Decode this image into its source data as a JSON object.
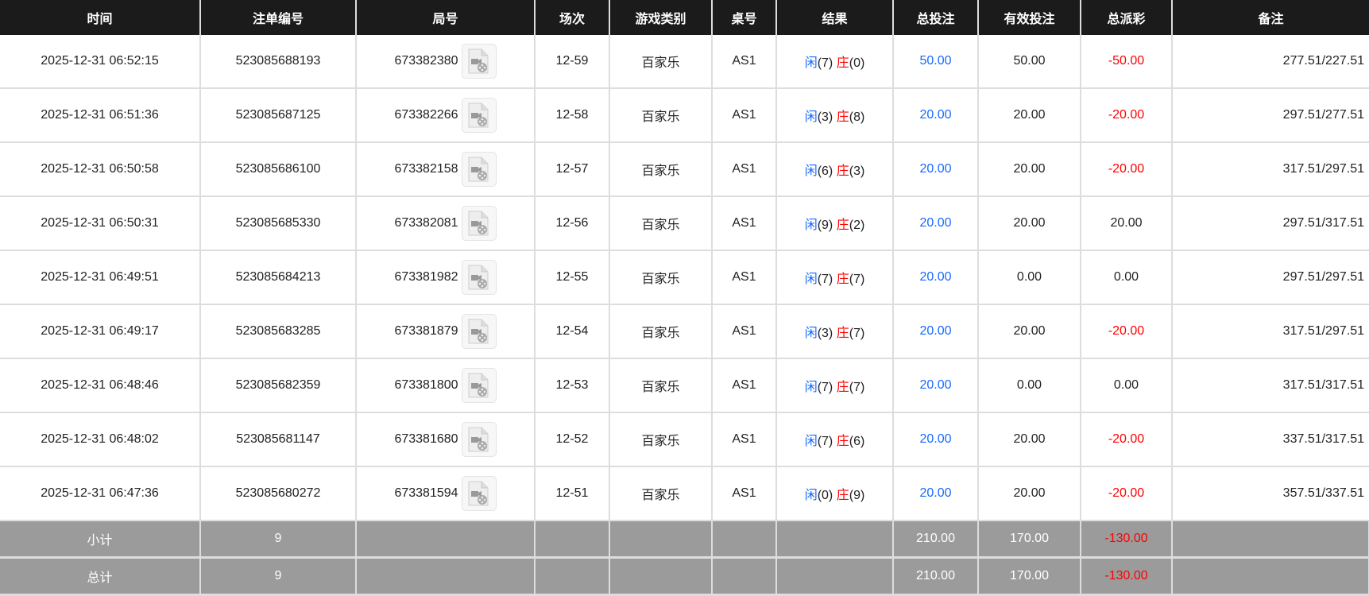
{
  "headers": [
    "时间",
    "注单编号",
    "局号",
    "场次",
    "游戏类别",
    "桌号",
    "结果",
    "总投注",
    "有效投注",
    "总派彩",
    "备注"
  ],
  "colors": {
    "player": "#1569ff",
    "banker": "#ff0000",
    "header_bg": "#1b1b1b",
    "summary_bg": "#9b9b9b"
  },
  "video_icon": "video-file-icon",
  "rows": [
    {
      "time": "2025-12-31 06:52:15",
      "bet_id": "523085688193",
      "round": "673382380",
      "shoe": "12-59",
      "game": "百家乐",
      "table": "AS1",
      "player": "闲",
      "player_pts": "(7)",
      "banker": "庄",
      "banker_pts": "(0)",
      "total_bet": "50.00",
      "valid_bet": "50.00",
      "payout": "-50.00",
      "payout_neg": true,
      "note": "277.51/227.51"
    },
    {
      "time": "2025-12-31 06:51:36",
      "bet_id": "523085687125",
      "round": "673382266",
      "shoe": "12-58",
      "game": "百家乐",
      "table": "AS1",
      "player": "闲",
      "player_pts": "(3)",
      "banker": "庄",
      "banker_pts": "(8)",
      "total_bet": "20.00",
      "valid_bet": "20.00",
      "payout": "-20.00",
      "payout_neg": true,
      "note": "297.51/277.51"
    },
    {
      "time": "2025-12-31 06:50:58",
      "bet_id": "523085686100",
      "round": "673382158",
      "shoe": "12-57",
      "game": "百家乐",
      "table": "AS1",
      "player": "闲",
      "player_pts": "(6)",
      "banker": "庄",
      "banker_pts": "(3)",
      "total_bet": "20.00",
      "valid_bet": "20.00",
      "payout": "-20.00",
      "payout_neg": true,
      "note": "317.51/297.51"
    },
    {
      "time": "2025-12-31 06:50:31",
      "bet_id": "523085685330",
      "round": "673382081",
      "shoe": "12-56",
      "game": "百家乐",
      "table": "AS1",
      "player": "闲",
      "player_pts": "(9)",
      "banker": "庄",
      "banker_pts": "(2)",
      "total_bet": "20.00",
      "valid_bet": "20.00",
      "payout": "20.00",
      "payout_neg": false,
      "note": "297.51/317.51"
    },
    {
      "time": "2025-12-31 06:49:51",
      "bet_id": "523085684213",
      "round": "673381982",
      "shoe": "12-55",
      "game": "百家乐",
      "table": "AS1",
      "player": "闲",
      "player_pts": "(7)",
      "banker": "庄",
      "banker_pts": "(7)",
      "total_bet": "20.00",
      "valid_bet": "0.00",
      "payout": "0.00",
      "payout_neg": false,
      "note": "297.51/297.51"
    },
    {
      "time": "2025-12-31 06:49:17",
      "bet_id": "523085683285",
      "round": "673381879",
      "shoe": "12-54",
      "game": "百家乐",
      "table": "AS1",
      "player": "闲",
      "player_pts": "(3)",
      "banker": "庄",
      "banker_pts": "(7)",
      "total_bet": "20.00",
      "valid_bet": "20.00",
      "payout": "-20.00",
      "payout_neg": true,
      "note": "317.51/297.51"
    },
    {
      "time": "2025-12-31 06:48:46",
      "bet_id": "523085682359",
      "round": "673381800",
      "shoe": "12-53",
      "game": "百家乐",
      "table": "AS1",
      "player": "闲",
      "player_pts": "(7)",
      "banker": "庄",
      "banker_pts": "(7)",
      "total_bet": "20.00",
      "valid_bet": "0.00",
      "payout": "0.00",
      "payout_neg": false,
      "note": "317.51/317.51"
    },
    {
      "time": "2025-12-31 06:48:02",
      "bet_id": "523085681147",
      "round": "673381680",
      "shoe": "12-52",
      "game": "百家乐",
      "table": "AS1",
      "player": "闲",
      "player_pts": "(7)",
      "banker": "庄",
      "banker_pts": "(6)",
      "total_bet": "20.00",
      "valid_bet": "20.00",
      "payout": "-20.00",
      "payout_neg": true,
      "note": "337.51/317.51"
    },
    {
      "time": "2025-12-31 06:47:36",
      "bet_id": "523085680272",
      "round": "673381594",
      "shoe": "12-51",
      "game": "百家乐",
      "table": "AS1",
      "player": "闲",
      "player_pts": "(0)",
      "banker": "庄",
      "banker_pts": "(9)",
      "total_bet": "20.00",
      "valid_bet": "20.00",
      "payout": "-20.00",
      "payout_neg": true,
      "note": "357.51/337.51"
    }
  ],
  "summary": [
    {
      "label": "小计",
      "count": "9",
      "total_bet": "210.00",
      "valid_bet": "170.00",
      "payout": "-130.00"
    },
    {
      "label": "总计",
      "count": "9",
      "total_bet": "210.00",
      "valid_bet": "170.00",
      "payout": "-130.00"
    }
  ]
}
